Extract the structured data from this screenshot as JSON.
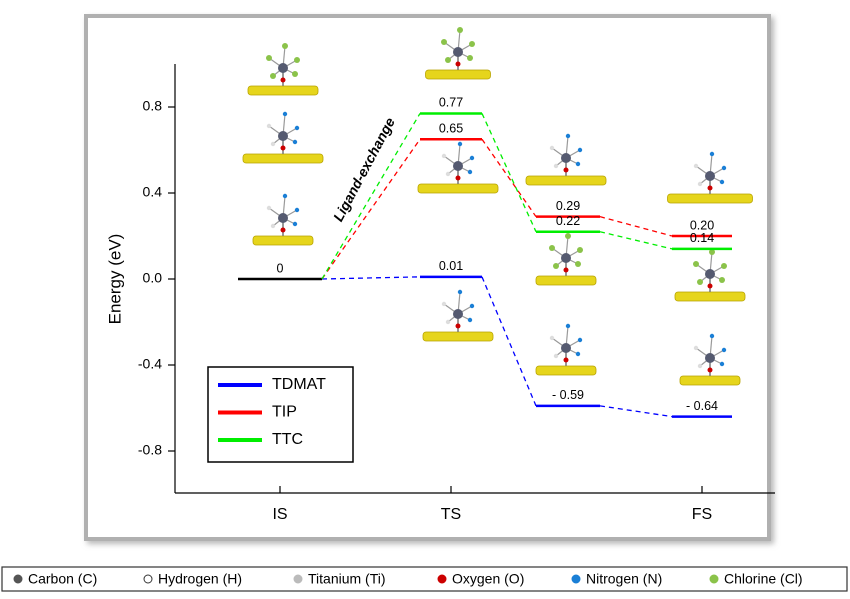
{
  "chart_data": {
    "type": "energy-diagram",
    "y_label": "Energy (eV)",
    "annotation": "Ligand-exchange",
    "categories": [
      "IS",
      "TS",
      null,
      "FS"
    ],
    "ylim": [
      -1.0,
      1.0
    ],
    "yticks": [
      -0.8,
      -0.4,
      {
        "value": 0,
        "label": "0.0"
      },
      0.4,
      0.8
    ],
    "shared_level_color": "#000000",
    "series": [
      {
        "name": "TDMAT",
        "color": "#0000ff",
        "values": [
          0,
          0.01,
          -0.59,
          -0.64
        ],
        "value_labels": [
          "0",
          "0.01",
          "- 0.59",
          "- 0.64"
        ]
      },
      {
        "name": "TIP",
        "color": "#ff0000",
        "values": [
          0,
          0.65,
          0.29,
          0.2
        ],
        "value_labels": [
          null,
          "0.65",
          "0.29",
          "0.20"
        ]
      },
      {
        "name": "TTC",
        "color": "#00ee00",
        "values": [
          0,
          0.77,
          0.22,
          0.14
        ],
        "value_labels": [
          null,
          "0.77",
          "0.22",
          "0.14"
        ]
      }
    ]
  },
  "atom_legend": [
    {
      "label": "Carbon (C)",
      "color": "#555555"
    },
    {
      "label": "Hydrogen (H)",
      "color": "#ffffff"
    },
    {
      "label": "Titanium (Ti)",
      "color": "#bbbbbb"
    },
    {
      "label": "Oxygen (O)",
      "color": "#cc0000"
    },
    {
      "label": "Nitrogen (N)",
      "color": "#1a7fd6"
    },
    {
      "label": "Chlorine (Cl)",
      "color": "#8bc34a"
    }
  ]
}
